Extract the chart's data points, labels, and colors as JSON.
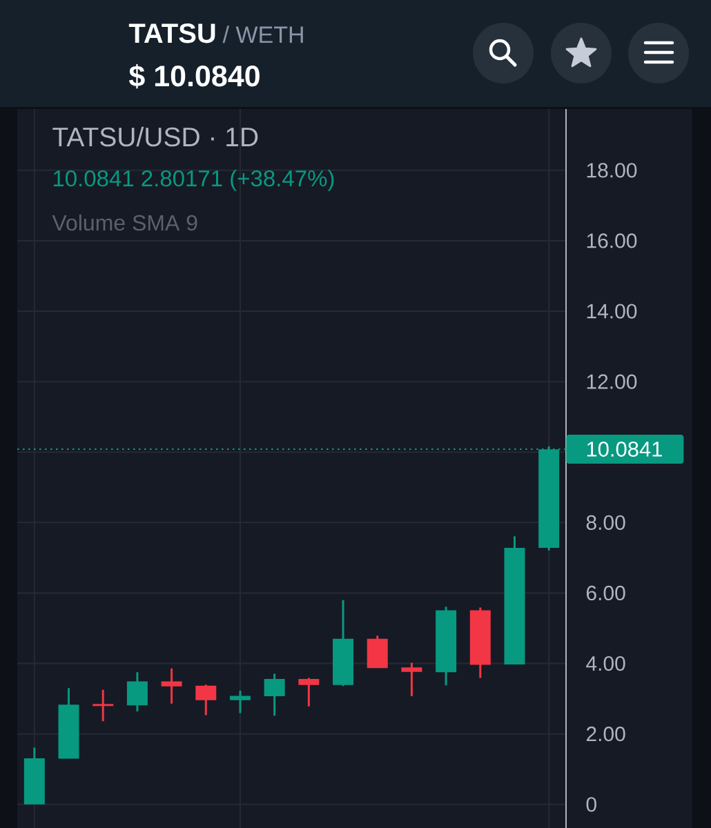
{
  "chart_data": {
    "type": "candlestick",
    "title": "TATSU/USD · 1D",
    "subtitle": "10.0841 2.80171 (+38.47%)",
    "annotations": [
      "Volume SMA 9",
      "TATSU",
      "/ WETH",
      "$ 10.0840"
    ],
    "categories": [
      null,
      null,
      null,
      null,
      null,
      null,
      null,
      null,
      null,
      null,
      null,
      null,
      null,
      null,
      null,
      null
    ],
    "ohlc": [
      [
        0,
        1.61,
        0,
        1.31
      ],
      [
        1.3,
        3.3,
        1.3,
        2.83
      ],
      [
        2.85,
        3.25,
        2.36,
        2.79
      ],
      [
        2.81,
        3.75,
        2.64,
        3.49
      ],
      [
        3.49,
        3.86,
        2.86,
        3.35
      ],
      [
        3.37,
        3.4,
        2.53,
        2.96
      ],
      [
        2.96,
        3.23,
        2.59,
        3.08
      ],
      [
        3.07,
        3.71,
        2.52,
        3.56
      ],
      [
        3.56,
        3.59,
        2.78,
        3.39
      ],
      [
        3.39,
        5.8,
        3.36,
        4.7
      ],
      [
        4.7,
        4.79,
        3.87,
        3.87
      ],
      [
        3.89,
        4.02,
        3.07,
        3.76
      ],
      [
        3.75,
        5.61,
        3.38,
        5.51
      ],
      [
        5.51,
        5.59,
        3.59,
        3.96
      ],
      [
        3.97,
        7.61,
        3.97,
        7.28
      ],
      [
        7.28,
        10.16,
        7.21,
        10.08
      ]
    ],
    "colors": [
      "#089981",
      "#089981",
      "#F23645",
      "#089981",
      "#F23645",
      "#F23645",
      "#089981",
      "#089981",
      "#F23645",
      "#089981",
      "#F23645",
      "#F23645",
      "#089981",
      "#F23645",
      "#089981",
      "#089981"
    ],
    "ylim": [
      -0.67,
      19.74
    ],
    "yticks": [
      0,
      {
        "value": 2,
        "label": "2.00"
      },
      {
        "value": 4,
        "label": "4.00"
      },
      {
        "value": 6,
        "label": "6.00"
      },
      {
        "value": 8,
        "label": "8.00"
      },
      {
        "value": 10,
        "label": null
      },
      {
        "value": 12,
        "label": "12.00"
      },
      {
        "value": 14,
        "label": "14.00"
      },
      {
        "value": 16,
        "label": "16.00"
      },
      {
        "value": 18,
        "label": "18.00"
      }
    ],
    "grid": true,
    "tick_labels": "y",
    "ref_lines": [
      {
        "axis": "y",
        "value": 10.0841,
        "label": "10.0841",
        "color": "#089981",
        "line_style": "dotted"
      }
    ]
  }
}
